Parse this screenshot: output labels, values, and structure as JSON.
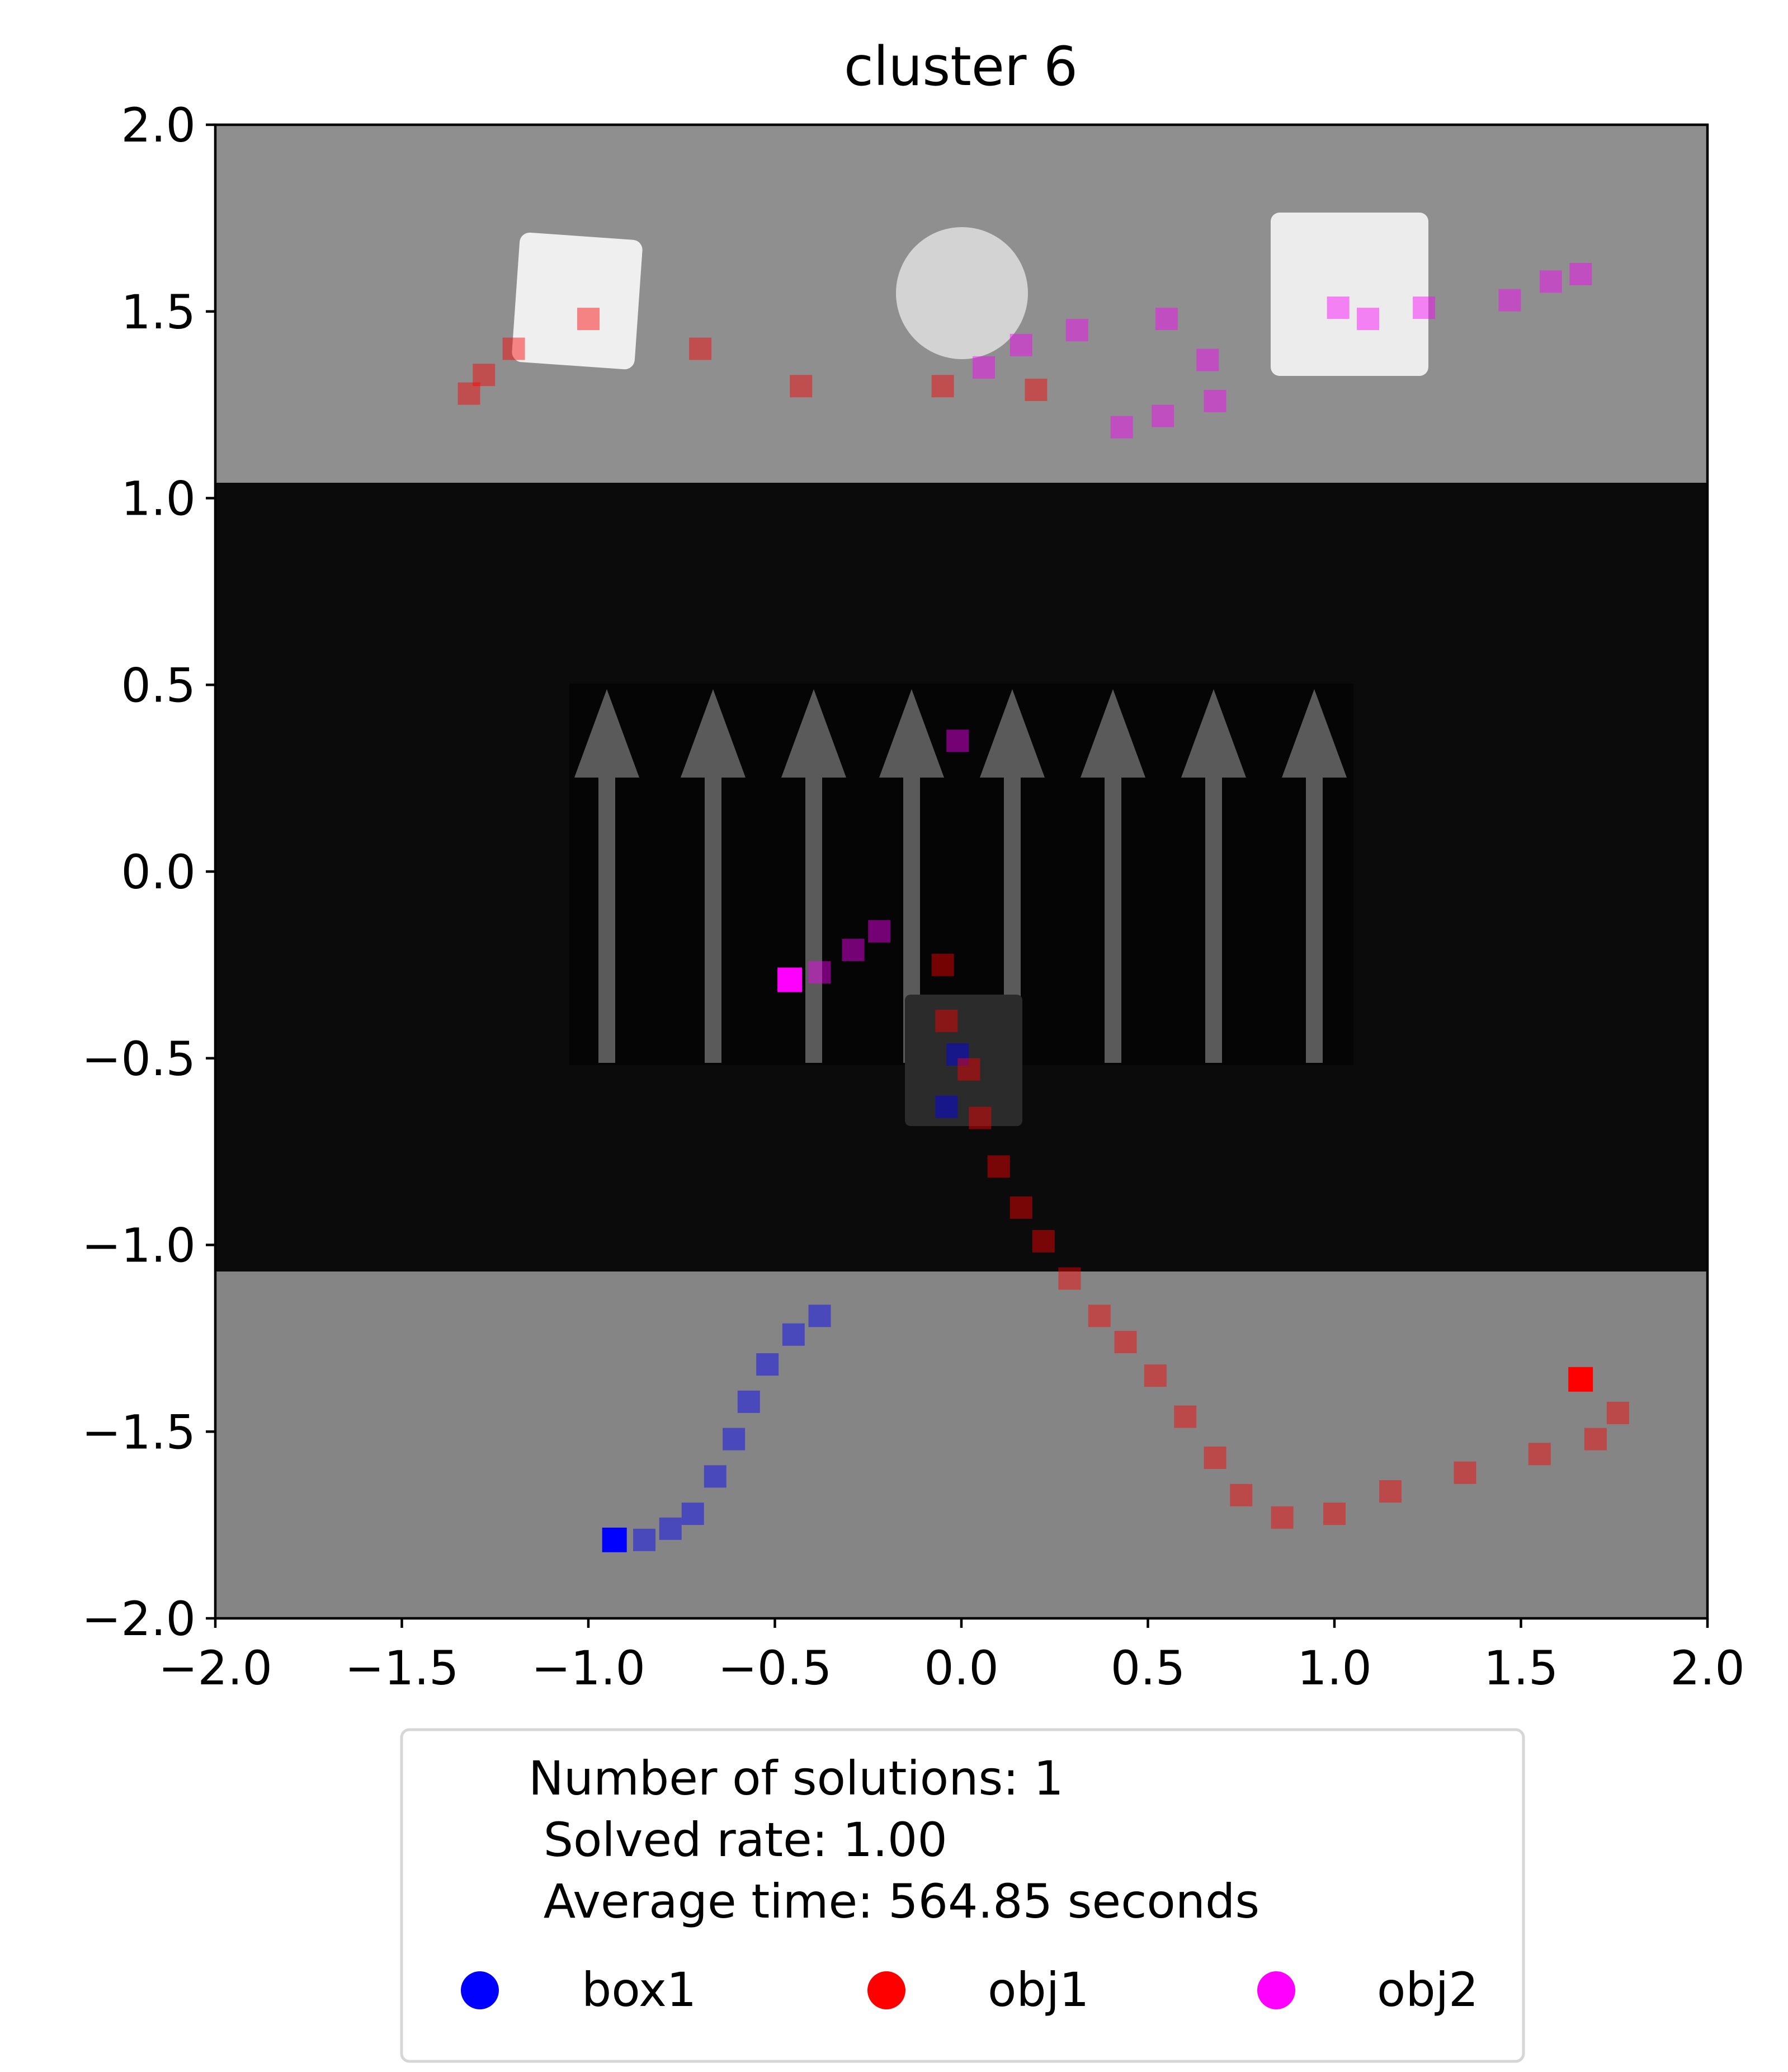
{
  "chart_data": {
    "type": "scatter",
    "title": "cluster 6",
    "xlabel": "",
    "ylabel": "",
    "xlim": [
      -2.0,
      2.0
    ],
    "ylim": [
      -2.0,
      2.0
    ],
    "xticks": [
      "−2.0",
      "−1.5",
      "−1.0",
      "−0.5",
      "0.0",
      "0.5",
      "1.0",
      "1.5",
      "2.0"
    ],
    "yticks": [
      "−2.0",
      "−1.5",
      "−1.0",
      "−0.5",
      "0.0",
      "0.5",
      "1.0",
      "1.5",
      "2.0"
    ],
    "grid": false,
    "legend_placement": "below",
    "legend": {
      "lines": [
        "Number of solutions: 1",
        " Solved rate: 1.00",
        " Average time: 564.85 seconds"
      ],
      "entries": [
        "box1",
        "obj1",
        "obj2"
      ]
    },
    "series": [
      {
        "name": "box1",
        "color": "#0000ff",
        "points": [
          [
            -0.93,
            -1.79
          ],
          [
            -0.85,
            -1.79
          ],
          [
            -0.78,
            -1.76
          ],
          [
            -0.72,
            -1.72
          ],
          [
            -0.66,
            -1.62
          ],
          [
            -0.61,
            -1.52
          ],
          [
            -0.57,
            -1.42
          ],
          [
            -0.52,
            -1.32
          ],
          [
            -0.45,
            -1.24
          ],
          [
            -0.38,
            -1.19
          ],
          [
            -0.04,
            -0.63
          ],
          [
            -0.01,
            -0.49
          ]
        ]
      },
      {
        "name": "obj1",
        "color": "#ff0000",
        "points": [
          [
            1.66,
            -1.36
          ],
          [
            1.76,
            -1.45
          ],
          [
            1.7,
            -1.52
          ],
          [
            1.55,
            -1.56
          ],
          [
            1.35,
            -1.61
          ],
          [
            1.15,
            -1.66
          ],
          [
            1.0,
            -1.72
          ],
          [
            0.86,
            -1.73
          ],
          [
            0.75,
            -1.67
          ],
          [
            0.68,
            -1.57
          ],
          [
            0.6,
            -1.46
          ],
          [
            0.52,
            -1.35
          ],
          [
            0.44,
            -1.26
          ],
          [
            0.37,
            -1.19
          ],
          [
            0.29,
            -1.09
          ],
          [
            0.22,
            -0.99
          ],
          [
            0.16,
            -0.9
          ],
          [
            0.1,
            -0.79
          ],
          [
            0.05,
            -0.66
          ],
          [
            0.02,
            -0.53
          ],
          [
            -0.04,
            -0.4
          ],
          [
            -0.05,
            -0.25
          ],
          [
            0.2,
            1.29
          ],
          [
            -0.05,
            1.3
          ],
          [
            -0.43,
            1.3
          ],
          [
            -0.7,
            1.4
          ],
          [
            -1.0,
            1.48
          ],
          [
            -1.2,
            1.4
          ],
          [
            -1.28,
            1.33
          ],
          [
            -1.32,
            1.28
          ]
        ]
      },
      {
        "name": "obj2",
        "color": "#ff00ff",
        "points": [
          [
            -0.46,
            -0.29
          ],
          [
            -0.38,
            -0.27
          ],
          [
            -0.29,
            -0.21
          ],
          [
            -0.22,
            -0.16
          ],
          [
            -0.01,
            0.35
          ],
          [
            0.06,
            1.35
          ],
          [
            0.16,
            1.41
          ],
          [
            0.31,
            1.45
          ],
          [
            0.55,
            1.48
          ],
          [
            0.66,
            1.37
          ],
          [
            0.68,
            1.26
          ],
          [
            0.54,
            1.22
          ],
          [
            0.43,
            1.19
          ],
          [
            1.01,
            1.51
          ],
          [
            1.09,
            1.48
          ],
          [
            1.24,
            1.51
          ],
          [
            1.47,
            1.53
          ],
          [
            1.58,
            1.58
          ],
          [
            1.66,
            1.6
          ]
        ]
      }
    ]
  }
}
